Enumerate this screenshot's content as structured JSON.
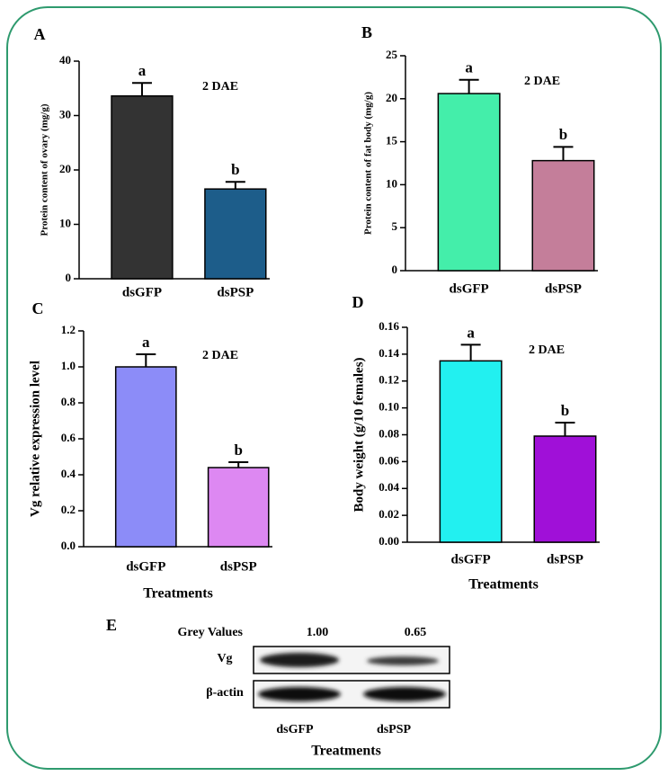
{
  "chart_data": [
    {
      "type": "bar",
      "panel_label": "A",
      "ylabel": "Protein content of ovary (mg/g)",
      "annotation": "2 DAE",
      "categories": [
        "dsGFP",
        "dsPSP"
      ],
      "values": [
        33.6,
        16.5
      ],
      "errors": [
        2.4,
        1.3
      ],
      "letters": [
        "a",
        "b"
      ],
      "colors": [
        "#333333",
        "#1d5d8a"
      ],
      "ylim": [
        0,
        40
      ],
      "yticks": [
        0,
        10,
        20,
        30,
        40
      ]
    },
    {
      "type": "bar",
      "panel_label": "B",
      "ylabel": "Protein content of fat body (mg/g)",
      "annotation": "2 DAE",
      "categories": [
        "dsGFP",
        "dsPSP"
      ],
      "values": [
        20.6,
        12.8
      ],
      "errors": [
        1.6,
        1.6
      ],
      "letters": [
        "a",
        "b"
      ],
      "colors": [
        "#44eeaa",
        "#c47e9a"
      ],
      "ylim": [
        0,
        25
      ],
      "yticks": [
        0,
        5,
        10,
        15,
        20,
        25
      ]
    },
    {
      "type": "bar",
      "panel_label": "C",
      "ylabel": "Vg relative expression level",
      "annotation": "2 DAE",
      "xlabel": "Treatments",
      "categories": [
        "dsGFP",
        "dsPSP"
      ],
      "values": [
        1.0,
        0.44
      ],
      "errors": [
        0.07,
        0.03
      ],
      "letters": [
        "a",
        "b"
      ],
      "colors": [
        "#8c8cf8",
        "#dd88f2"
      ],
      "ylim": [
        0,
        1.2
      ],
      "yticks": [
        {
          "value": 0,
          "label": "0.0"
        },
        0.2,
        0.4,
        0.6,
        0.8,
        {
          "value": 1,
          "label": "1.0"
        },
        1.2
      ]
    },
    {
      "type": "bar",
      "panel_label": "D",
      "ylabel": "Body weight (g/10 females)",
      "annotation": "2 DAE",
      "xlabel": "Treatments",
      "categories": [
        "dsGFP",
        "dsPSP"
      ],
      "values": [
        0.135,
        0.079
      ],
      "errors": [
        0.012,
        0.01
      ],
      "letters": [
        "a",
        "b"
      ],
      "colors": [
        "#22f0f0",
        "#a010d8"
      ],
      "ylim": [
        0,
        0.16
      ],
      "yticks": [
        {
          "value": 0,
          "label": "0.00"
        },
        0.02,
        0.04,
        0.06,
        0.08,
        {
          "value": 0.1,
          "label": "0.10"
        },
        0.12,
        0.14,
        0.16
      ]
    }
  ],
  "blot": {
    "panel_label": "E",
    "header": "Grey Values",
    "grey_values": [
      "1.00",
      "0.65"
    ],
    "rows": [
      "Vg",
      "β-actin"
    ],
    "lanes": [
      "dsGFP",
      "dsPSP"
    ],
    "xlabel": "Treatments"
  }
}
